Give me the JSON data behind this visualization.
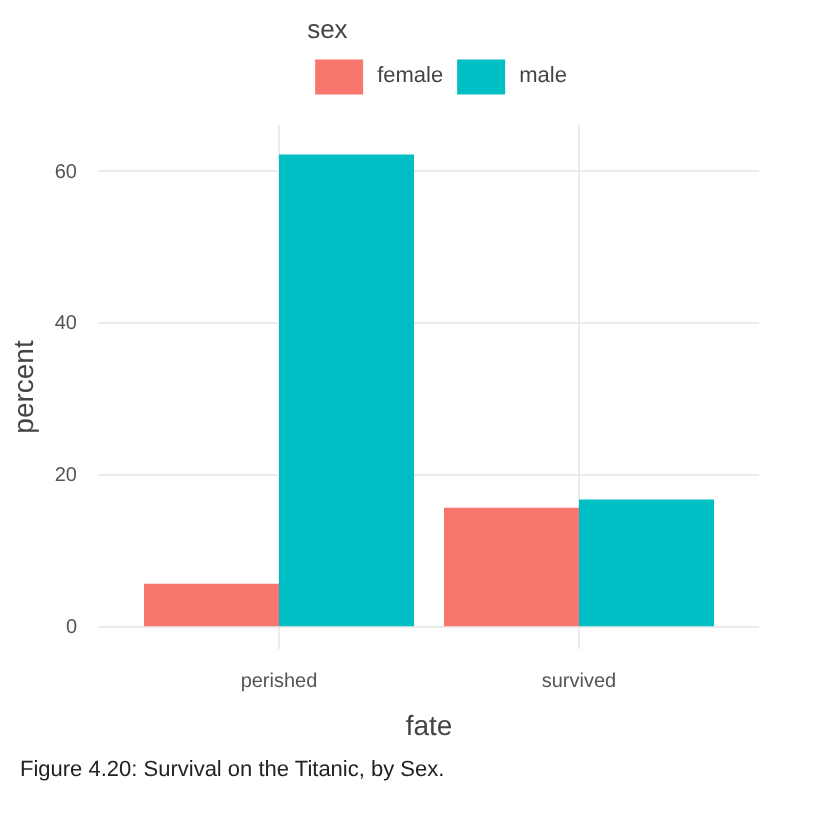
{
  "chart_data": {
    "type": "bar",
    "categories": [
      "perished",
      "survived"
    ],
    "series": [
      {
        "name": "female",
        "color": "#f8766d",
        "values": [
          5.6,
          15.6
        ]
      },
      {
        "name": "male",
        "color": "#00bfc4",
        "values": [
          62.1,
          16.7
        ]
      }
    ],
    "ylim": [
      -3,
      66
    ],
    "yticks": [
      0,
      20,
      40,
      60
    ],
    "ylabel": "percent",
    "xlabel": "fate",
    "legend_title": "sex",
    "legend": "top",
    "grid": true,
    "annotations": [
      "Figure 4.20: Survival on the Titanic, by Sex."
    ]
  }
}
